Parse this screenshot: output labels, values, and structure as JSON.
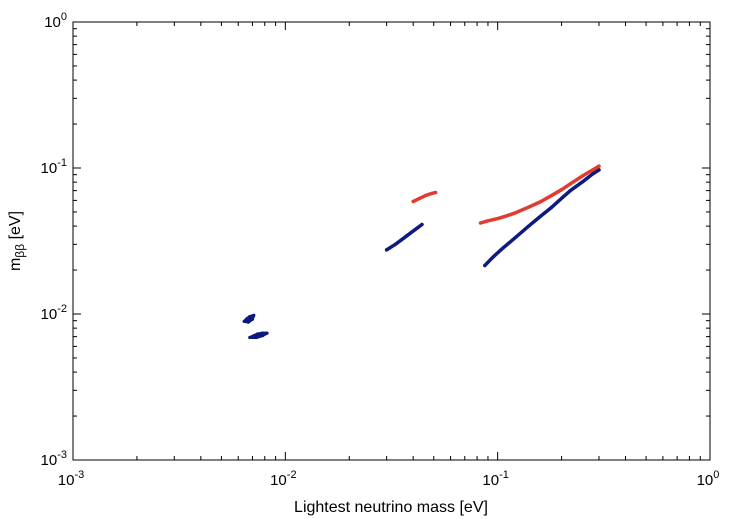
{
  "chart_data": {
    "type": "scatter",
    "title": "",
    "xlabel": "Lightest neutrino mass [eV]",
    "ylabel": "m",
    "ylabel_subscript": "ββ",
    "ylabel_unit": " [eV]",
    "xscale": "log",
    "yscale": "log",
    "xlim": [
      0.001,
      1
    ],
    "ylim": [
      0.001,
      1
    ],
    "grid": false,
    "legend": "none",
    "x_ticks": [
      {
        "base": "10",
        "exp": "-3"
      },
      {
        "base": "10",
        "exp": "-2"
      },
      {
        "base": "10",
        "exp": "-1"
      },
      {
        "base": "10",
        "exp": "0"
      }
    ],
    "y_ticks": [
      {
        "base": "10",
        "exp": "-3"
      },
      {
        "base": "10",
        "exp": "-2"
      },
      {
        "base": "10",
        "exp": "-1"
      },
      {
        "base": "10",
        "exp": "0"
      }
    ],
    "series": [
      {
        "color": "#0d1a80",
        "regions": [
          {
            "shape": "blob",
            "points": [
              [
                0.0064,
                0.0089
              ],
              [
                0.0066,
                0.0093
              ],
              [
                0.0068,
                0.0096
              ],
              [
                0.0071,
                0.0098
              ],
              [
                0.007,
                0.0092
              ],
              [
                0.0067,
                0.0088
              ]
            ]
          },
          {
            "shape": "blob",
            "points": [
              [
                0.0068,
                0.0069
              ],
              [
                0.0071,
                0.0071
              ],
              [
                0.0074,
                0.0073
              ],
              [
                0.0078,
                0.0074
              ],
              [
                0.0082,
                0.0074
              ],
              [
                0.0078,
                0.0071
              ],
              [
                0.0073,
                0.0069
              ]
            ]
          },
          {
            "shape": "band",
            "points": [
              [
                0.03,
                0.0275
              ],
              [
                0.033,
                0.03
              ],
              [
                0.036,
                0.033
              ],
              [
                0.039,
                0.036
              ],
              [
                0.042,
                0.039
              ],
              [
                0.044,
                0.041
              ]
            ]
          },
          {
            "shape": "band",
            "points": [
              [
                0.087,
                0.0215
              ],
              [
                0.095,
                0.0245
              ],
              [
                0.105,
                0.028
              ],
              [
                0.12,
                0.033
              ],
              [
                0.14,
                0.04
              ],
              [
                0.16,
                0.047
              ],
              [
                0.18,
                0.054
              ],
              [
                0.2,
                0.062
              ],
              [
                0.22,
                0.07
              ],
              [
                0.25,
                0.08
              ],
              [
                0.28,
                0.091
              ],
              [
                0.3,
                0.097
              ]
            ]
          }
        ]
      },
      {
        "color": "#e03c31",
        "regions": [
          {
            "shape": "band",
            "points": [
              [
                0.04,
                0.059
              ],
              [
                0.043,
                0.062
              ],
              [
                0.046,
                0.065
              ],
              [
                0.049,
                0.067
              ],
              [
                0.051,
                0.068
              ]
            ]
          },
          {
            "shape": "band",
            "points": [
              [
                0.083,
                0.042
              ],
              [
                0.09,
                0.0435
              ],
              [
                0.1,
                0.045
              ],
              [
                0.11,
                0.047
              ],
              [
                0.12,
                0.049
              ],
              [
                0.14,
                0.054
              ],
              [
                0.16,
                0.059
              ],
              [
                0.18,
                0.065
              ],
              [
                0.2,
                0.071
              ],
              [
                0.22,
                0.078
              ],
              [
                0.25,
                0.088
              ],
              [
                0.3,
                0.103
              ]
            ]
          }
        ]
      }
    ]
  }
}
